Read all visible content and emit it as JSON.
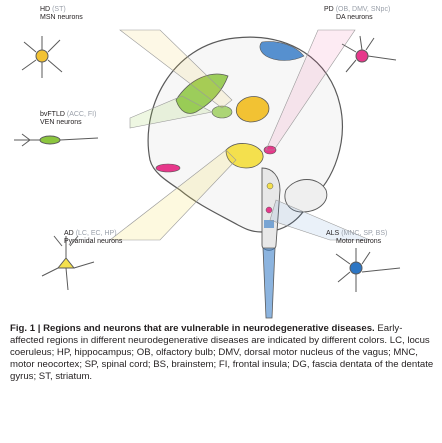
{
  "figure": {
    "diseases": [
      {
        "abbr": "HD",
        "regions": "(ST)",
        "neurons": "MSN neurons"
      },
      {
        "abbr": "PD",
        "regions": "(OB, DMV, SNpc)",
        "neurons": "DA neurons"
      },
      {
        "abbr": "bvFTLD",
        "regions": "(ACC, FI)",
        "neurons": "VEN neurons"
      },
      {
        "abbr": "AD",
        "regions": "(LC, EC, HP)",
        "neurons": "Pyramidal neurons"
      },
      {
        "abbr": "ALS",
        "regions": "(MNC, SP, BS)",
        "neurons": "Motor neurons"
      }
    ]
  },
  "caption": {
    "number": "Fig. 1",
    "title": "Regions and neurons that are vulnerable in neurodegenerative diseases.",
    "body": "Early-affected regions in different neurodegenerative diseases are indicated by different colors. LC, locus coeruleus; HP, hippocampus; OB, olfactory bulb; DMV, dorsal motor nucleus of the vagus; MNC, motor neocortex; SP, spinal cord; BS, brainstem; FI, frontal insula; DG, fascia dentata of the dentate gyrus; ST, striatum."
  },
  "colors": {
    "hd": "#f2c233",
    "pd": "#e7388b",
    "bvftld": "#8cc63f",
    "ad": "#f4e04d",
    "als": "#2d76c4",
    "outline": "#5a5a5a"
  }
}
